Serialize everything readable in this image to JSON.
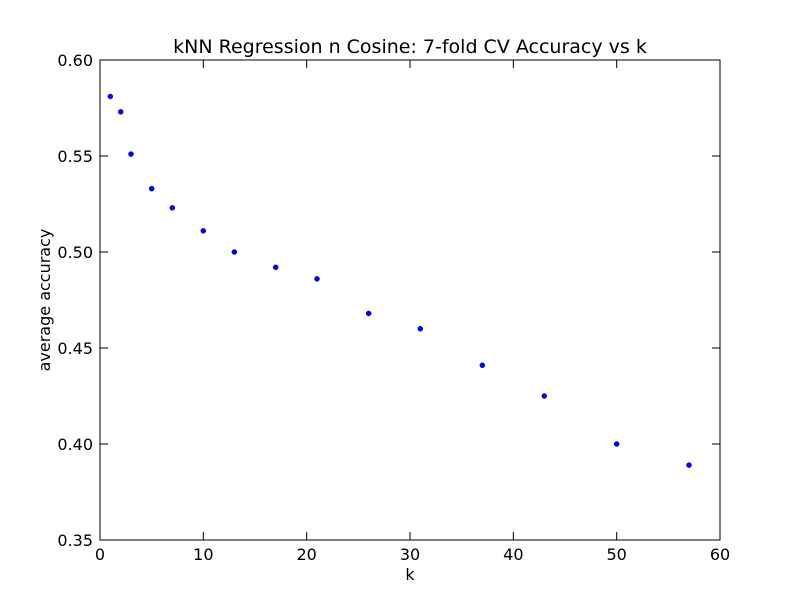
{
  "chart_data": {
    "type": "scatter",
    "title": "kNN Regression n Cosine: 7-fold CV Accuracy vs k",
    "xlabel": "k",
    "ylabel": "average accuracy",
    "xlim": [
      0,
      60
    ],
    "ylim": [
      0.35,
      0.6
    ],
    "xticks": [
      "0",
      "10",
      "20",
      "30",
      "40",
      "50",
      "60"
    ],
    "yticks": [
      "0.35",
      "0.40",
      "0.45",
      "0.50",
      "0.55",
      "0.60"
    ],
    "grid": false,
    "marker_color": "#0000ff",
    "points": [
      {
        "x": 1,
        "y": 0.581
      },
      {
        "x": 2,
        "y": 0.573
      },
      {
        "x": 3,
        "y": 0.551
      },
      {
        "x": 5,
        "y": 0.533
      },
      {
        "x": 7,
        "y": 0.523
      },
      {
        "x": 10,
        "y": 0.511
      },
      {
        "x": 13,
        "y": 0.5
      },
      {
        "x": 17,
        "y": 0.492
      },
      {
        "x": 21,
        "y": 0.486
      },
      {
        "x": 26,
        "y": 0.468
      },
      {
        "x": 31,
        "y": 0.46
      },
      {
        "x": 37,
        "y": 0.441
      },
      {
        "x": 43,
        "y": 0.425
      },
      {
        "x": 50,
        "y": 0.4
      },
      {
        "x": 57,
        "y": 0.389
      }
    ]
  }
}
